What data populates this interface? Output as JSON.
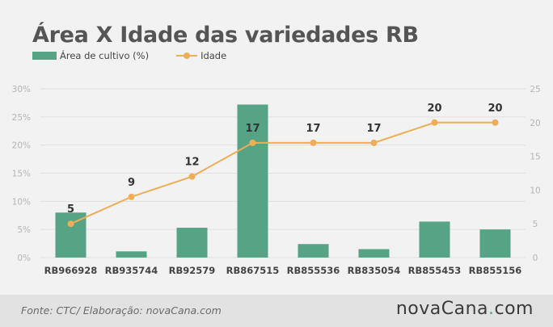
{
  "title": "Área X Idade das variedades RB",
  "legend": {
    "bar_label": "Área de cultivo (%)",
    "line_label": "Idade"
  },
  "colors": {
    "bar": "#56a386",
    "line": "#efae55",
    "grid": "#e0e0e0",
    "tick": "#b5b5b5",
    "label": "#333333"
  },
  "footer": {
    "source": "Fonte: CTC/ Elaboração: novaCana.com",
    "logo_main": "novaCana",
    "logo_dot": ".",
    "logo_tld": "com"
  },
  "chart_data": {
    "type": "bar",
    "title": "Área X Idade das variedades RB",
    "categories": [
      "RB966928",
      "RB935744",
      "RB92579",
      "RB867515",
      "RB855536",
      "RB835054",
      "RB855453",
      "RB855156"
    ],
    "series": [
      {
        "name": "Área de cultivo (%)",
        "type": "bar",
        "axis": "left",
        "values": [
          8.0,
          1.1,
          5.3,
          27.2,
          2.4,
          1.5,
          6.4,
          5.0
        ]
      },
      {
        "name": "Idade",
        "type": "line",
        "axis": "right",
        "values": [
          5,
          9,
          12,
          17,
          17,
          17,
          20,
          20
        ],
        "labels": [
          "5",
          "9",
          "12",
          "17",
          "17",
          "17",
          "20",
          "20"
        ]
      }
    ],
    "y_left": {
      "ylim": [
        0,
        30
      ],
      "ticks": [
        "0%",
        "5%",
        "10%",
        "15%",
        "20%",
        "25%",
        "30%"
      ],
      "tick_values": [
        0,
        5,
        10,
        15,
        20,
        25,
        30
      ]
    },
    "y_right": {
      "ylim": [
        0,
        25
      ],
      "ticks": [
        "0",
        "5",
        "10",
        "15",
        "20",
        "25"
      ],
      "tick_values": [
        0,
        5,
        10,
        15,
        20,
        25
      ]
    },
    "grid": true,
    "legend_position": "top-left"
  }
}
